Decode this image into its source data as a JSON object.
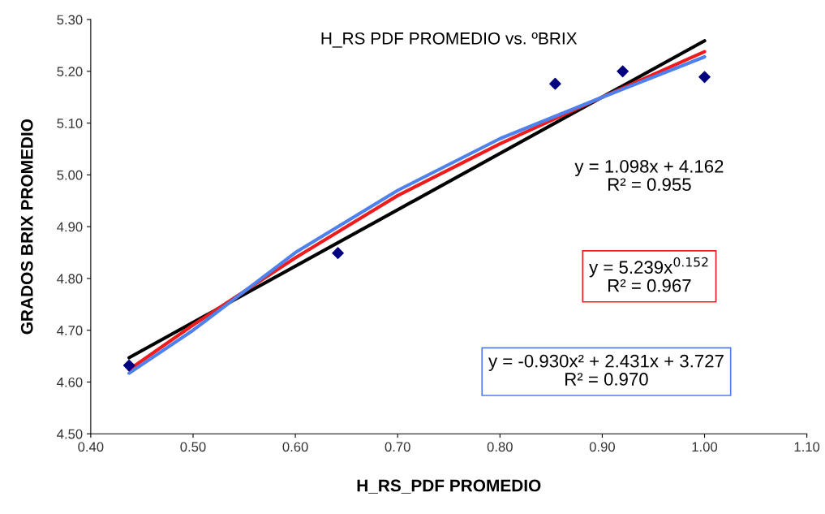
{
  "chart_data": {
    "type": "scatter",
    "title": "H_RS PDF PROMEDIO vs. ºBRIX",
    "xlabel": "H_RS_PDF PROMEDIO",
    "ylabel": "GRADOS BRIX PROMEDIO",
    "xlim": [
      0.4,
      1.1
    ],
    "xticks": [
      {
        "value": 0.4,
        "label": "0.40"
      },
      {
        "value": 0.5,
        "label": "0.50"
      },
      {
        "value": 0.6,
        "label": "0.60"
      },
      {
        "value": 0.7,
        "label": "0.70"
      },
      {
        "value": 0.8,
        "label": "0.80"
      },
      {
        "value": 0.9,
        "label": "0.90"
      },
      {
        "value": 1.0,
        "label": "1.00"
      },
      {
        "value": 1.1,
        "label": "1.10"
      }
    ],
    "ylim": [
      4.5,
      5.3
    ],
    "yticks": [
      {
        "value": 4.5,
        "label": "4.50"
      },
      {
        "value": 4.6,
        "label": "4.60"
      },
      {
        "value": 4.7,
        "label": "4.70"
      },
      {
        "value": 4.8,
        "label": "4.80"
      },
      {
        "value": 4.9,
        "label": "4.90"
      },
      {
        "value": 5.0,
        "label": "5.00"
      },
      {
        "value": 5.1,
        "label": "5.10"
      },
      {
        "value": 5.2,
        "label": "5.20"
      },
      {
        "value": 5.3,
        "label": "5.30"
      }
    ],
    "grid": false,
    "legend": false,
    "series": [
      {
        "type": "line",
        "marker": "none",
        "color": "#000000",
        "x": [
          0.4375,
          1.0
        ],
        "values": [
          4.647,
          5.259
        ]
      },
      {
        "type": "line",
        "marker": "none",
        "color": "#ee1c1c",
        "x": [
          0.4375,
          0.5,
          0.6,
          0.7,
          0.8,
          0.9,
          1.0
        ],
        "values": [
          4.624,
          4.71,
          4.84,
          4.96,
          5.06,
          5.15,
          5.238
        ]
      },
      {
        "type": "line",
        "marker": "none",
        "color": "#4f81ee",
        "x": [
          0.4375,
          0.5,
          0.6,
          0.7,
          0.8,
          0.9,
          1.0
        ],
        "values": [
          4.617,
          4.7,
          4.85,
          4.97,
          5.07,
          5.15,
          5.228
        ]
      },
      {
        "marker": "diamond",
        "color": "#000080",
        "x": [
          0.4375,
          0.6416,
          0.854,
          0.92,
          1.0
        ],
        "values": [
          4.632,
          4.849,
          5.176,
          5.2,
          5.189
        ]
      }
    ],
    "annotations": [
      "y = 1.098x + 4.162\nR² = 0.955",
      "y = 5.239x$^{0.152}$\nR² = 0.967",
      "y = -0.930x² + 2.431x + 3.727\nR² = 0.970"
    ]
  }
}
